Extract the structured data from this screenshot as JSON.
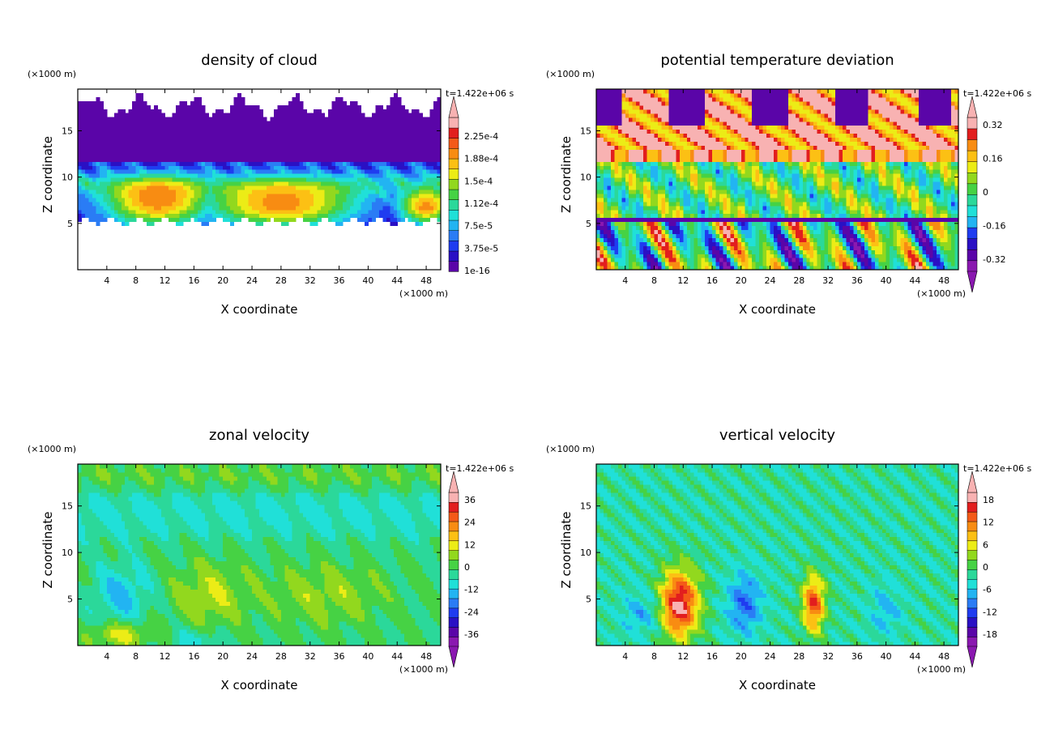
{
  "colors": {
    "cloud": [
      "#5a05a8",
      "#2a10c4",
      "#1f3cf0",
      "#2a7cf5",
      "#22b4f2",
      "#20e0d8",
      "#2bd89a",
      "#46d244",
      "#92d81e",
      "#ecec16",
      "#fcc014",
      "#f88c12",
      "#f45a18",
      "#e21e1e",
      "#f8b2b2"
    ],
    "theta": [
      "#8a18b0",
      "#5a05a8",
      "#2a10c4",
      "#1f3cf0",
      "#22b4f2",
      "#20e0d8",
      "#2bd89a",
      "#46d244",
      "#92d81e",
      "#ecec16",
      "#fcc014",
      "#f88c12",
      "#e21e1e",
      "#f8b2b2"
    ],
    "zonal": [
      "#8a18b0",
      "#5a05a8",
      "#2a10c4",
      "#1f3cf0",
      "#2a7cf5",
      "#22b4f2",
      "#20e0d8",
      "#2bd89a",
      "#46d244",
      "#92d81e",
      "#ecec16",
      "#fcc014",
      "#f88c12",
      "#f45a18",
      "#e21e1e",
      "#f8b2b2"
    ],
    "vert": [
      "#8a18b0",
      "#5a05a8",
      "#2a10c4",
      "#1f3cf0",
      "#2a7cf5",
      "#22b4f2",
      "#20e0d8",
      "#2bd89a",
      "#46d244",
      "#92d81e",
      "#ecec16",
      "#fcc014",
      "#f88c12",
      "#f45a18",
      "#e21e1e",
      "#f8b2b2"
    ]
  },
  "chart_data": [
    {
      "type": "heatmap",
      "title": "density of cloud",
      "xlabel": "X coordinate",
      "ylabel": "Z coordinate",
      "x_unit": "(×1000 m)",
      "y_unit": "(×1000 m)",
      "time_label": "t=1.422e+06 s",
      "xlim": [
        0,
        50
      ],
      "ylim": [
        0,
        19.5
      ],
      "x_ticks": [
        4,
        8,
        12,
        16,
        20,
        24,
        28,
        32,
        36,
        40,
        44,
        48
      ],
      "y_ticks": [
        5,
        10,
        15
      ],
      "colorbar_labels": [
        "1e-16",
        "3.75e-5",
        "7.5e-5",
        "1.12e-4",
        "1.5e-4",
        "1.88e-4",
        "2.25e-4"
      ],
      "colorbar_arrow_top": true,
      "colorbar_arrow_bottom": false,
      "field": "cloud"
    },
    {
      "type": "heatmap",
      "title": "potential temperature deviation",
      "xlabel": "X coordinate",
      "ylabel": "Z coordinate",
      "x_unit": "(×1000 m)",
      "y_unit": "(×1000 m)",
      "time_label": "t=1.422e+06 s",
      "xlim": [
        0,
        50
      ],
      "ylim": [
        0,
        19.5
      ],
      "x_ticks": [
        4,
        8,
        12,
        16,
        20,
        24,
        28,
        32,
        36,
        40,
        44,
        48
      ],
      "y_ticks": [
        5,
        10,
        15
      ],
      "colorbar_labels": [
        "-0.32",
        "-0.16",
        "0",
        "0.16",
        "0.32"
      ],
      "colorbar_arrow_top": true,
      "colorbar_arrow_bottom": true,
      "field": "theta"
    },
    {
      "type": "heatmap",
      "title": "zonal velocity",
      "xlabel": "X coordinate",
      "ylabel": "Z coordinate",
      "x_unit": "(×1000 m)",
      "y_unit": "(×1000 m)",
      "time_label": "t=1.422e+06 s",
      "xlim": [
        0,
        50
      ],
      "ylim": [
        0,
        19.5
      ],
      "x_ticks": [
        4,
        8,
        12,
        16,
        20,
        24,
        28,
        32,
        36,
        40,
        44,
        48
      ],
      "y_ticks": [
        5,
        10,
        15
      ],
      "colorbar_labels": [
        "-36",
        "-24",
        "-12",
        "0",
        "12",
        "24",
        "36"
      ],
      "colorbar_arrow_top": true,
      "colorbar_arrow_bottom": true,
      "field": "zonal"
    },
    {
      "type": "heatmap",
      "title": "vertical velocity",
      "xlabel": "X coordinate",
      "ylabel": "Z coordinate",
      "x_unit": "(×1000 m)",
      "y_unit": "(×1000 m)",
      "time_label": "t=1.422e+06 s",
      "xlim": [
        0,
        50
      ],
      "ylim": [
        0,
        19.5
      ],
      "x_ticks": [
        4,
        8,
        12,
        16,
        20,
        24,
        28,
        32,
        36,
        40,
        44,
        48
      ],
      "y_ticks": [
        5,
        10,
        15
      ],
      "colorbar_labels": [
        "-18",
        "-12",
        "-6",
        "0",
        "6",
        "12",
        "18"
      ],
      "colorbar_arrow_top": true,
      "colorbar_arrow_bottom": true,
      "field": "vert"
    }
  ]
}
